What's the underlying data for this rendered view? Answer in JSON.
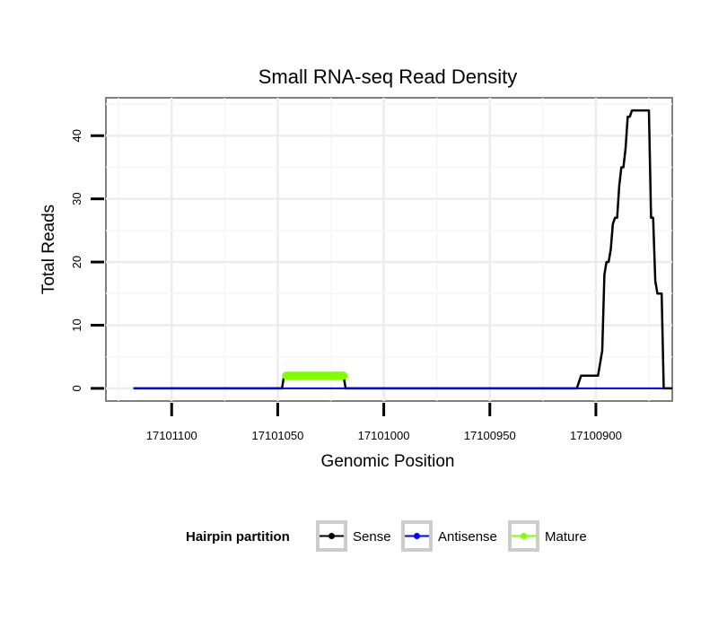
{
  "chart_data": {
    "type": "line",
    "title": "Small RNA-seq Read Density",
    "xlabel": "Genomic Position",
    "ylabel": "Total Reads",
    "x_reversed": true,
    "xlim": [
      17101131,
      17100864
    ],
    "ylim": [
      -2,
      46
    ],
    "x_ticks": [
      17101100,
      17101050,
      17101000,
      17100950,
      17100900
    ],
    "y_ticks": [
      0,
      10,
      20,
      30,
      40
    ],
    "grid": true,
    "legend": {
      "title": "Hairpin partition",
      "position": "bottom",
      "entries": [
        {
          "label": "Sense",
          "color": "#000000"
        },
        {
          "label": "Antisense",
          "color": "#0000ff"
        },
        {
          "label": "Mature",
          "color": "#7fff00"
        }
      ]
    },
    "series": [
      {
        "name": "Sense",
        "color": "#000000",
        "points": [
          [
            17101118,
            0
          ],
          [
            17101048,
            0
          ],
          [
            17101047,
            2
          ],
          [
            17101019,
            2
          ],
          [
            17101018,
            0
          ],
          [
            17100909,
            0
          ],
          [
            17100907,
            2
          ],
          [
            17100899,
            2
          ],
          [
            17100897,
            6
          ],
          [
            17100896,
            18
          ],
          [
            17100895,
            20
          ],
          [
            17100894,
            20
          ],
          [
            17100893,
            22
          ],
          [
            17100892,
            26
          ],
          [
            17100891,
            27
          ],
          [
            17100890,
            27
          ],
          [
            17100889,
            32
          ],
          [
            17100888,
            35
          ],
          [
            17100887,
            35
          ],
          [
            17100886,
            38
          ],
          [
            17100885,
            43
          ],
          [
            17100884,
            43
          ],
          [
            17100883,
            44
          ],
          [
            17100875,
            44
          ],
          [
            17100874,
            27
          ],
          [
            17100873,
            27
          ],
          [
            17100872,
            17
          ],
          [
            17100871,
            15
          ],
          [
            17100869,
            15
          ],
          [
            17100868,
            0
          ],
          [
            17100864,
            0
          ]
        ]
      },
      {
        "name": "Antisense",
        "color": "#0000ff",
        "points": [
          [
            17101118,
            0
          ],
          [
            17100868,
            0
          ]
        ]
      },
      {
        "name": "Mature",
        "color": "#7fff00",
        "points": [
          [
            17101046,
            2
          ],
          [
            17101019,
            2
          ]
        ]
      }
    ]
  }
}
